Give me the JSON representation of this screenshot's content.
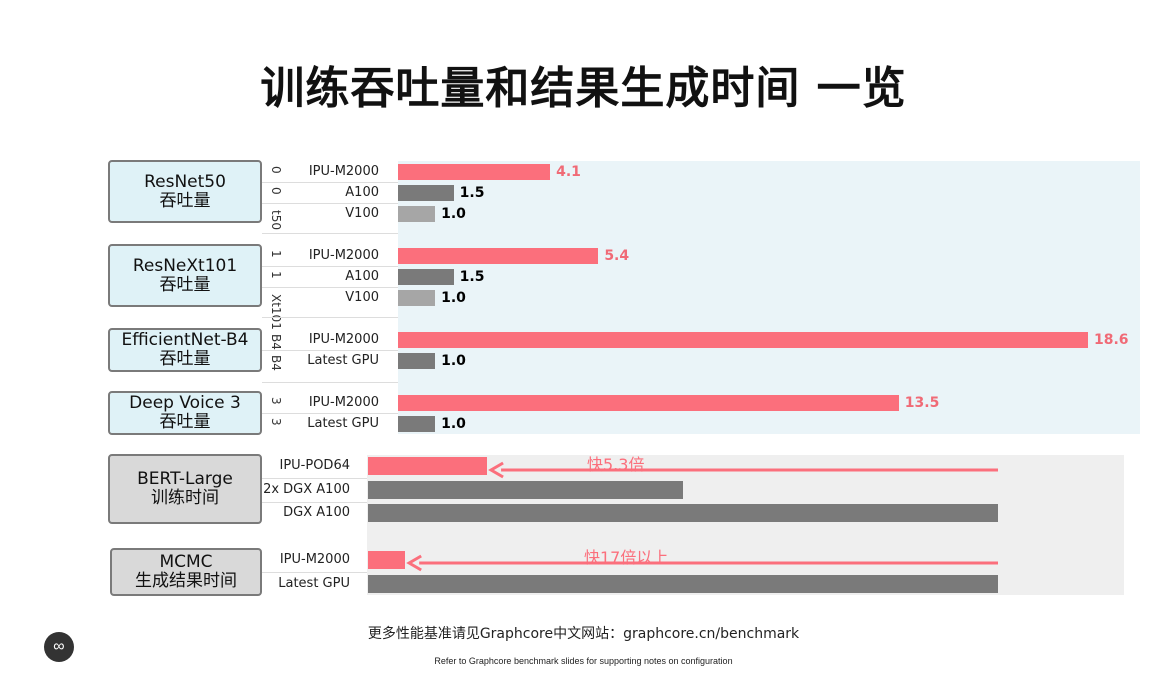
{
  "title": "训练吞吐量和结果生成时间 一览",
  "footer": {
    "line1": "更多性能基准请见Graphcore中文网站：graphcore.cn/benchmark",
    "line2": "Refer to Graphcore benchmark slides for supporting notes on configuration"
  },
  "logo": {
    "icon": "graphcore-logo-icon",
    "glyph": "∞"
  },
  "colors": {
    "ipu": "#fb6f7c",
    "a100": "#7a7a7a",
    "v100": "#a6a6a6",
    "ipu_text": "#f06a76",
    "gpu_text": "#000000"
  },
  "chart_data": [
    {
      "type": "bar",
      "orientation": "horizontal",
      "group_label": "ResNet50\n吞吐量",
      "side_tags": [
        "0",
        "0",
        "t50"
      ],
      "categories": [
        "IPU-M2000",
        "A100",
        "V100"
      ],
      "values": [
        4.1,
        1.5,
        1.0
      ],
      "value_labels": [
        "4.1",
        "1.5",
        "1.0"
      ]
    },
    {
      "type": "bar",
      "orientation": "horizontal",
      "group_label": "ResNeXt101\n吞吐量",
      "side_tags": [
        "1",
        "1",
        "Xt101"
      ],
      "categories": [
        "IPU-M2000",
        "A100",
        "V100"
      ],
      "values": [
        5.4,
        1.5,
        1.0
      ],
      "value_labels": [
        "5.4",
        "1.5",
        "1.0"
      ]
    },
    {
      "type": "bar",
      "orientation": "horizontal",
      "group_label": "EfficientNet-B4\n吞吐量",
      "side_tags": [
        "B4",
        "B4"
      ],
      "categories": [
        "IPU-M2000",
        "Latest GPU"
      ],
      "values": [
        18.6,
        1.0
      ],
      "value_labels": [
        "18.6",
        "1.0"
      ]
    },
    {
      "type": "bar",
      "orientation": "horizontal",
      "group_label": "Deep Voice 3\n吞吐量",
      "side_tags": [
        "3",
        "3"
      ],
      "categories": [
        "IPU-M2000",
        "Latest GPU"
      ],
      "values": [
        13.5,
        1.0
      ],
      "value_labels": [
        "13.5",
        "1.0"
      ]
    },
    {
      "type": "bar",
      "orientation": "horizontal",
      "group_label": "BERT-Large\n训练时间",
      "categories": [
        "IPU-POD64",
        "2x DGX A100",
        "DGX A100"
      ],
      "values": [
        0.189,
        0.5,
        1.0
      ],
      "annotation": "快5.3倍"
    },
    {
      "type": "bar",
      "orientation": "horizontal",
      "group_label": "MCMC\n生成结果时间",
      "categories": [
        "IPU-M2000",
        "Latest GPU"
      ],
      "values": [
        0.059,
        1.0
      ],
      "annotation": "快17倍以上"
    }
  ]
}
